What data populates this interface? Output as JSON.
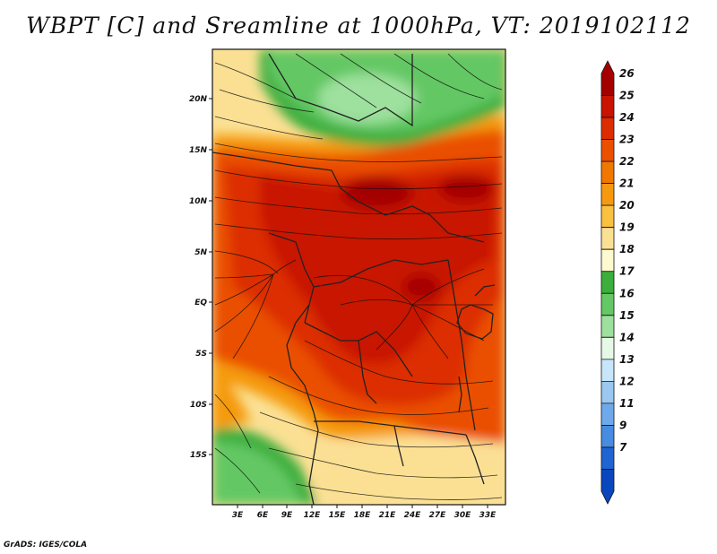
{
  "title": "WBPT [C] and Sreamline at 1000hPa, VT: 2019102112",
  "footer": "GrADS: IGES/COLA",
  "map": {
    "lat_labels": [
      "20N",
      "15N",
      "10N",
      "5N",
      "EQ",
      "5S",
      "10S",
      "15S"
    ],
    "lon_labels": [
      "3E",
      "6E",
      "9E",
      "12E",
      "15E",
      "18E",
      "21E",
      "24E",
      "27E",
      "30E",
      "33E"
    ]
  },
  "colorbar": {
    "levels": [
      "26",
      "25",
      "24",
      "23",
      "22",
      "21",
      "20",
      "19",
      "18",
      "17",
      "16",
      "15",
      "14",
      "13",
      "12",
      "11",
      "9",
      "7"
    ],
    "colors": [
      "#a50000",
      "#c81400",
      "#dc2d00",
      "#ea5000",
      "#f07800",
      "#f59a10",
      "#fac040",
      "#fbe094",
      "#fdfad0",
      "#3cae3c",
      "#64c864",
      "#9ee09e",
      "#e6f8e6",
      "#c8e6fa",
      "#9ac8f0",
      "#6eaaeb",
      "#468ce1",
      "#1e64d2",
      "#0a46be"
    ]
  },
  "colors": {
    "warm_core": "#c81400",
    "warm_mid": "#dc2d00",
    "warm_edge": "#f07800",
    "cool_green": "#64c864",
    "light_yellow": "#fbe094"
  }
}
